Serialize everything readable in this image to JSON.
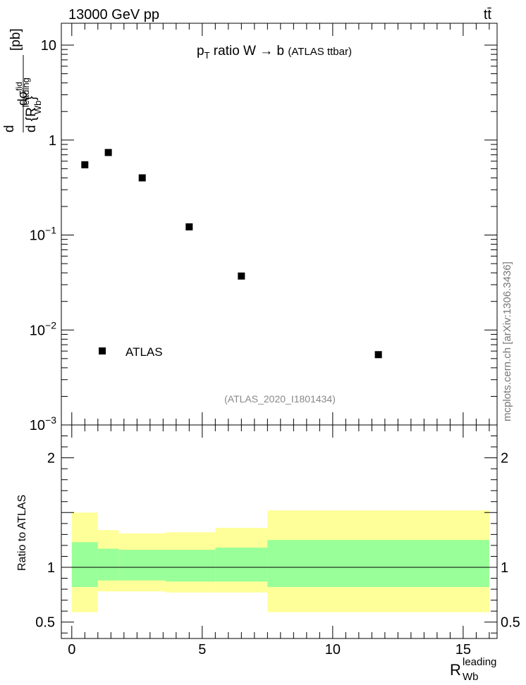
{
  "header": {
    "energy_label": "13000 GeV pp",
    "process_label": "tt̄",
    "side_label": "mcplots.cern.ch [arXiv:1306.3436]"
  },
  "chart_data": [
    {
      "type": "scatter",
      "panel": "main",
      "title": "p_T ratio W → b (ATLAS ttbar)",
      "title_parts": {
        "p": "p",
        "sub": "T",
        "main": "ratio W",
        "arrow": "→",
        "b": "b",
        "paren": "(ATLAS ttbar)"
      },
      "ylabel": "d σ^{fid} / d {R_{Wb}^{leading}} [pb]",
      "ylabel_parts": {
        "top": "dσ",
        "top_sup": "fid",
        "bottom_d": "d {R",
        "bottom_sup": "leading",
        "bottom_sub": "Wb",
        "bottom_close": "}",
        "unit": "[pb]",
        "lead_d": "d"
      },
      "yscale": "log",
      "ylim": [
        0.001,
        17
      ],
      "xlim": [
        -0.4,
        16.3
      ],
      "y_ticks": [
        {
          "value": 10,
          "label": "10"
        },
        {
          "value": 1,
          "label": "1"
        },
        {
          "value": 0.1,
          "label": "10",
          "exp": "−1"
        },
        {
          "value": 0.01,
          "label": "10",
          "exp": "−2"
        },
        {
          "value": 0.001,
          "label": "10",
          "exp": "−3"
        }
      ],
      "series": [
        {
          "name": "ATLAS",
          "marker": "square",
          "color": "#000000",
          "x": [
            0.5,
            1.4,
            2.7,
            4.5,
            6.5,
            11.75
          ],
          "y": [
            0.55,
            0.74,
            0.4,
            0.122,
            0.037,
            0.0055
          ]
        }
      ],
      "legend": {
        "placement": "bottom-left",
        "entries": [
          "ATLAS"
        ]
      },
      "annotation": "(ATLAS_2020_I1801434)",
      "annotation_color": "#888888"
    },
    {
      "type": "area",
      "panel": "ratio",
      "ylabel": "Ratio to ATLAS",
      "xlabel": "R_{Wb}^{leading}",
      "xlabel_parts": {
        "base": "R",
        "sup": "leading",
        "sub": "Wb"
      },
      "ylim": [
        0.35,
        2.3
      ],
      "xlim": [
        -0.4,
        16.3
      ],
      "x_ticks": [
        0,
        5,
        10,
        15
      ],
      "y_ticks": [
        {
          "value": 0.5,
          "label": "0.5"
        },
        {
          "value": 1,
          "label": "1"
        },
        {
          "value": 2,
          "label": "2"
        }
      ],
      "bins": [
        {
          "x_low": 0.0,
          "x_high": 1.0,
          "inner": [
            0.82,
            1.23
          ],
          "outer": [
            0.59,
            1.5
          ]
        },
        {
          "x_low": 1.0,
          "x_high": 1.8,
          "inner": [
            0.88,
            1.17
          ],
          "outer": [
            0.78,
            1.34
          ]
        },
        {
          "x_low": 1.8,
          "x_high": 3.6,
          "inner": [
            0.88,
            1.16
          ],
          "outer": [
            0.78,
            1.31
          ]
        },
        {
          "x_low": 3.6,
          "x_high": 5.5,
          "inner": [
            0.87,
            1.16
          ],
          "outer": [
            0.77,
            1.32
          ]
        },
        {
          "x_low": 5.5,
          "x_high": 7.5,
          "inner": [
            0.87,
            1.18
          ],
          "outer": [
            0.77,
            1.36
          ]
        },
        {
          "x_low": 7.5,
          "x_high": 16.0,
          "inner": [
            0.82,
            1.25
          ],
          "outer": [
            0.59,
            1.52
          ]
        }
      ],
      "reference_line": 1,
      "inner_band_color": "#99ff99",
      "outer_band_color": "#ffff99"
    }
  ]
}
